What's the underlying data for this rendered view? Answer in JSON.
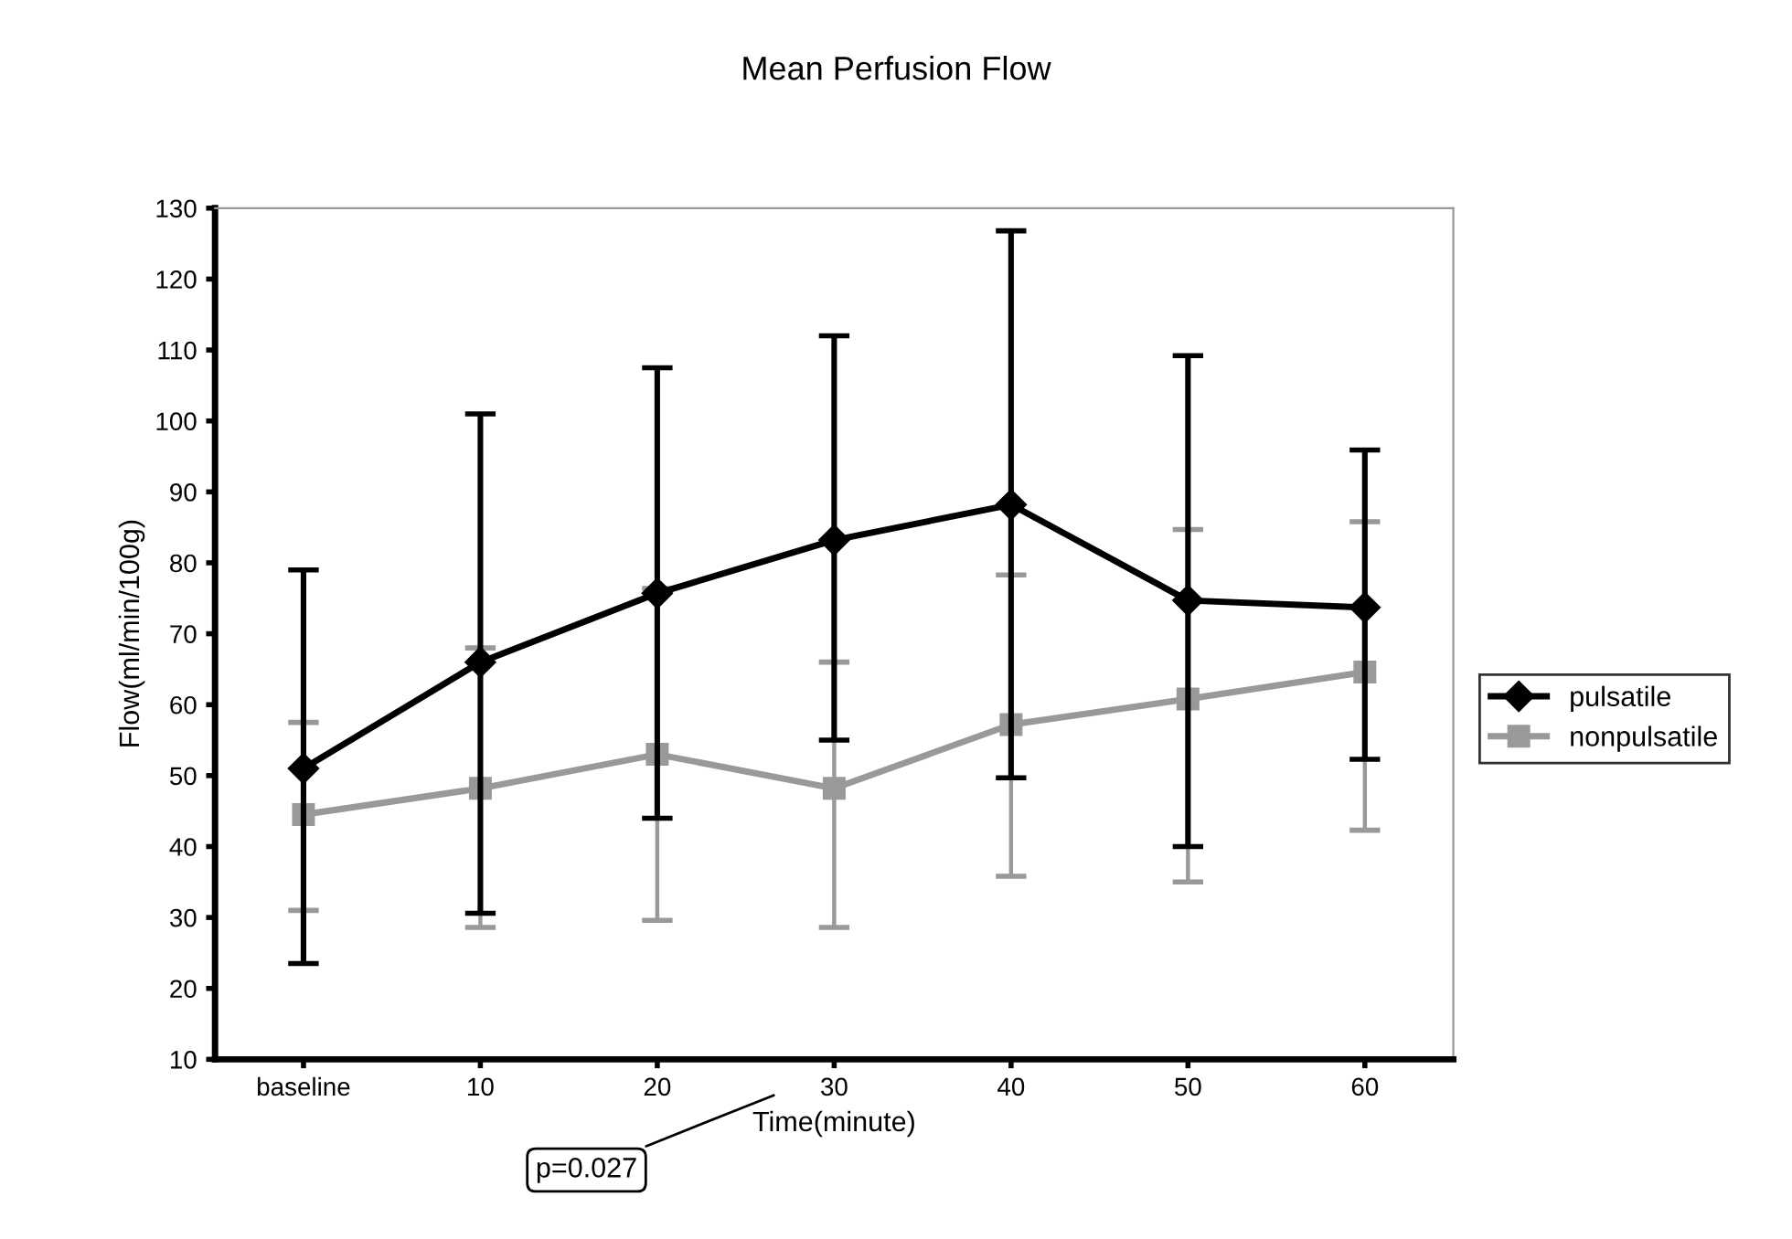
{
  "chart_data": {
    "type": "line",
    "title": "Mean Perfusion Flow",
    "xlabel": "Time(minute)",
    "ylabel": "Flow(ml/min/100g)",
    "categories": [
      "baseline",
      "10",
      "20",
      "30",
      "40",
      "50",
      "60"
    ],
    "series": [
      {
        "name": "pulsatile",
        "color": "#000000",
        "marker": "diamond",
        "values": [
          51,
          66,
          75.7,
          83.2,
          88.2,
          74.7,
          73.7
        ],
        "errors": [
          [
            23.5,
            79
          ],
          [
            30.6,
            101
          ],
          [
            44,
            107.5
          ],
          [
            55,
            112
          ],
          [
            49.7,
            126.8
          ],
          [
            40,
            109.2
          ],
          [
            52.3,
            95.9
          ]
        ]
      },
      {
        "name": "nonpulsatile",
        "color": "#999999",
        "marker": "square",
        "values": [
          44.5,
          48.2,
          53,
          48.2,
          57.2,
          60.8,
          64.6
        ],
        "errors": [
          [
            31,
            57.5
          ],
          [
            28.6,
            68
          ],
          [
            29.6,
            76.4
          ],
          [
            28.6,
            66
          ],
          [
            35.8,
            78.3
          ],
          [
            35,
            84.7
          ],
          [
            42.3,
            85.8
          ]
        ]
      }
    ],
    "ylim": [
      10,
      130
    ],
    "yticks": [
      10,
      20,
      30,
      40,
      50,
      60,
      70,
      80,
      90,
      100,
      110,
      120,
      130
    ],
    "grid": false,
    "legend": "right",
    "line_style": "solid",
    "annotations": [
      "p=0.027"
    ]
  }
}
